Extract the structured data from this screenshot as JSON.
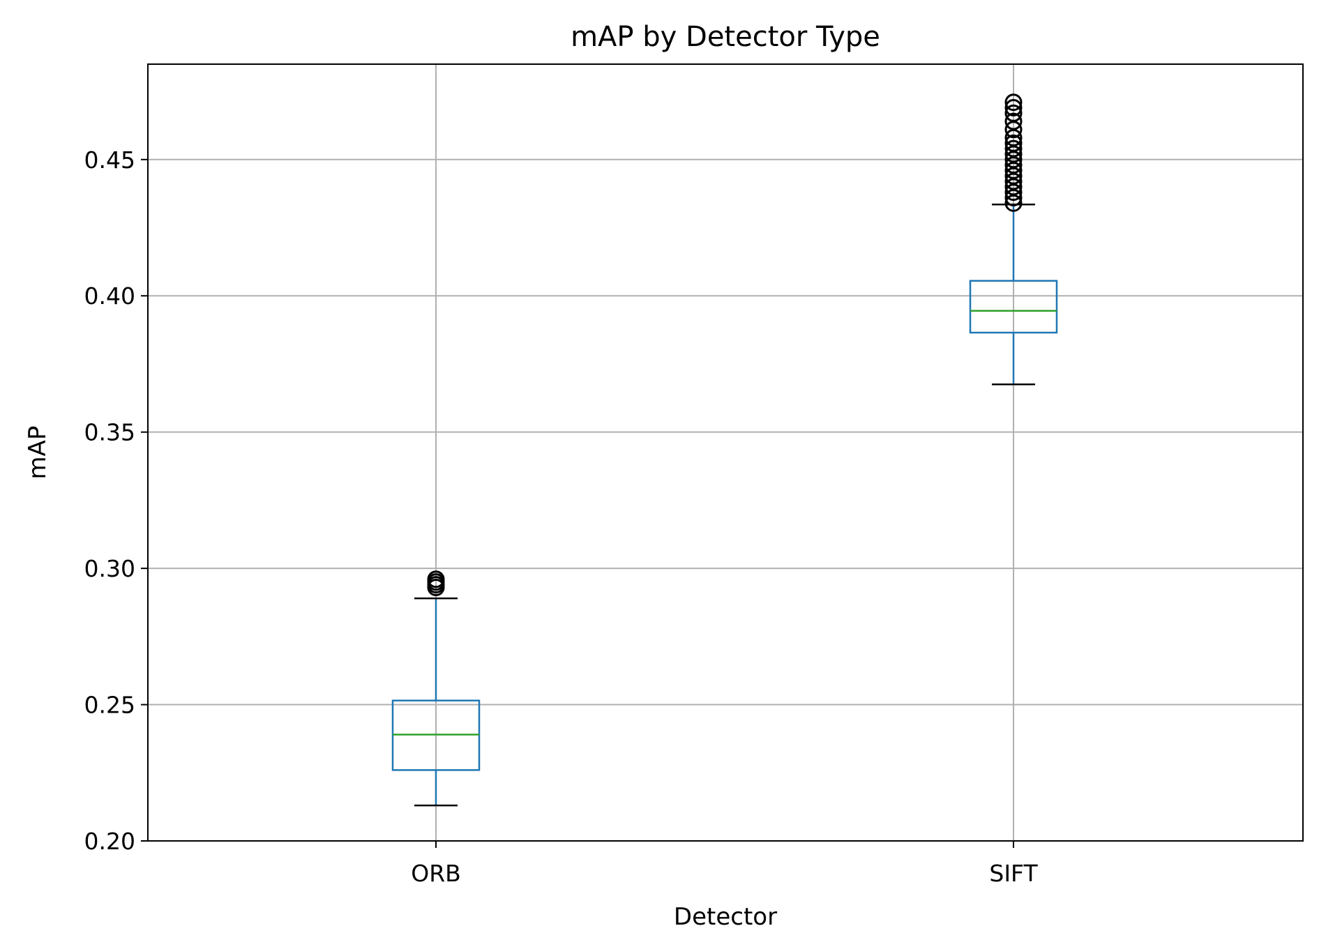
{
  "chart_data": {
    "type": "box",
    "title": "mAP by Detector Type",
    "xlabel": "Detector",
    "ylabel": "mAP",
    "ylim": [
      0.2,
      0.485
    ],
    "yticks": [
      "0.20",
      "0.25",
      "0.30",
      "0.35",
      "0.40",
      "0.45"
    ],
    "grid": true,
    "categories": [
      "ORB",
      "SIFT"
    ],
    "boxes": [
      {
        "name": "ORB",
        "whisker_low": 0.213,
        "q1": 0.226,
        "median": 0.239,
        "q3": 0.2515,
        "whisker_high": 0.289,
        "outliers": [
          0.293,
          0.294,
          0.295,
          0.296
        ]
      },
      {
        "name": "SIFT",
        "whisker_low": 0.3675,
        "q1": 0.3865,
        "median": 0.3945,
        "q3": 0.4055,
        "whisker_high": 0.4335,
        "outliers": [
          0.434,
          0.436,
          0.438,
          0.44,
          0.442,
          0.444,
          0.446,
          0.448,
          0.45,
          0.452,
          0.454,
          0.456,
          0.458,
          0.461,
          0.464,
          0.467,
          0.469,
          0.471
        ]
      }
    ],
    "colors": {
      "box": "#1f77b4",
      "median": "#2ca02c",
      "whisker_cap": "#000000",
      "outlier": "#000000",
      "grid": "#b0b0b0"
    }
  }
}
